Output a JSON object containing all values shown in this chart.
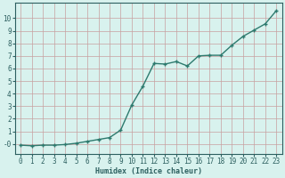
{
  "x": [
    0,
    1,
    2,
    3,
    4,
    5,
    6,
    7,
    8,
    9,
    10,
    11,
    12,
    13,
    14,
    15,
    16,
    17,
    18,
    19,
    20,
    21,
    22,
    23
  ],
  "y": [
    -0.1,
    -0.15,
    -0.1,
    -0.1,
    -0.05,
    0.05,
    0.2,
    0.35,
    0.5,
    1.1,
    3.1,
    4.6,
    6.4,
    6.35,
    6.55,
    6.2,
    7.0,
    7.05,
    7.05,
    7.85,
    8.55,
    9.05,
    9.55,
    10.6
  ],
  "line_color": "#2d7a6e",
  "marker": "+",
  "marker_color": "#2d7a6e",
  "bg_color": "#d8f2ee",
  "grid_color": "#c8a0a0",
  "xlabel": "Humidex (Indice chaleur)",
  "xlim": [
    -0.5,
    23.5
  ],
  "ylim": [
    -0.8,
    11.2
  ],
  "ytick_vals": [
    0,
    1,
    2,
    3,
    4,
    5,
    6,
    7,
    8,
    9,
    10
  ],
  "ytick_labels": [
    "-0",
    "1",
    "2",
    "3",
    "4",
    "5",
    "6",
    "7",
    "8",
    "9",
    "10"
  ],
  "xtick_vals": [
    0,
    1,
    2,
    3,
    4,
    5,
    6,
    7,
    8,
    9,
    10,
    11,
    12,
    13,
    14,
    15,
    16,
    17,
    18,
    19,
    20,
    21,
    22,
    23
  ],
  "font_color": "#2d6060",
  "linewidth": 1.0,
  "markersize": 3.5,
  "xlabel_fontsize": 6.0,
  "tick_fontsize": 5.5
}
